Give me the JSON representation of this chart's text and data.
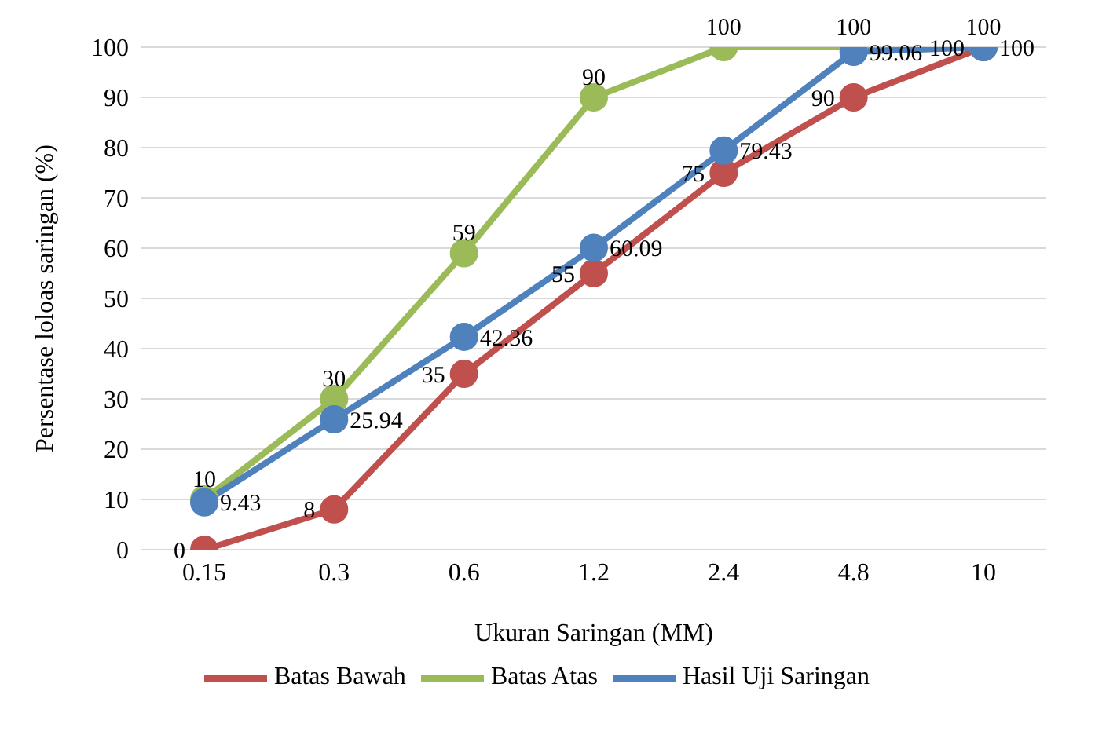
{
  "chart_data": {
    "type": "line",
    "xlabel": "Ukuran Saringan (MM)",
    "ylabel": "Persentase loloas saringan (%)",
    "categories": [
      "0.15",
      "0.3",
      "0.6",
      "1.2",
      "2.4",
      "4.8",
      "10"
    ],
    "series": [
      {
        "name": "Batas Bawah",
        "color": "#c0504d",
        "values": [
          0,
          8,
          35,
          55,
          75,
          90,
          100
        ]
      },
      {
        "name": "Batas Atas",
        "color": "#9bbb59",
        "values": [
          10,
          30,
          59,
          90,
          100,
          100,
          100
        ]
      },
      {
        "name": "Hasil Uji Saringan",
        "color": "#4f81bd",
        "values": [
          9.43,
          25.94,
          42.36,
          60.09,
          79.43,
          99.06,
          100
        ]
      }
    ],
    "ylim": [
      0,
      100
    ],
    "yticks": [
      0,
      10,
      20,
      30,
      40,
      50,
      60,
      70,
      80,
      90,
      100
    ],
    "grid": "y",
    "legend": "bottom",
    "marker": "circle",
    "line_style": "solid",
    "data_labels": true
  }
}
